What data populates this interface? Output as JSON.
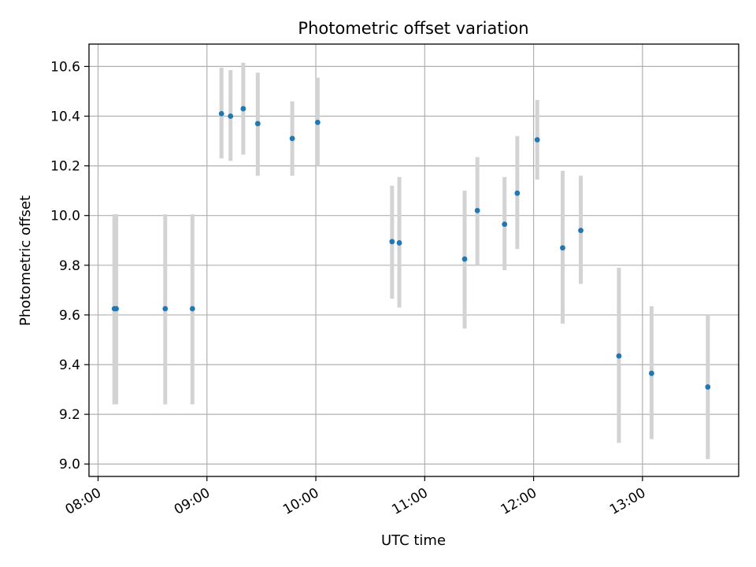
{
  "chart_data": {
    "type": "scatter",
    "title": "Photometric offset variation",
    "xlabel": "UTC time",
    "ylabel": "Photometric offset",
    "x_ticks": [
      "08:00",
      "09:00",
      "10:00",
      "11:00",
      "12:00",
      "13:00"
    ],
    "y_ticks": [
      "9.0",
      "9.2",
      "9.4",
      "9.6",
      "9.8",
      "10.0",
      "10.2",
      "10.4",
      "10.6"
    ],
    "xlim": [
      "07:55",
      "13:53"
    ],
    "ylim": [
      8.95,
      10.69
    ],
    "grid": true,
    "colors": {
      "points": "#1f77b4",
      "errorbars": "#d3d3d3"
    },
    "series": [
      {
        "x": [
          "08:09",
          "08:10",
          "08:37",
          "08:52",
          "09:08",
          "09:13",
          "09:20",
          "09:28",
          "09:47",
          "10:01",
          "10:42",
          "10:46",
          "11:22",
          "11:29",
          "11:44",
          "11:51",
          "12:02",
          "12:16",
          "12:26",
          "12:47",
          "13:05",
          "13:36"
        ],
        "y": [
          9.625,
          9.625,
          9.625,
          9.625,
          10.41,
          10.4,
          10.43,
          10.37,
          10.31,
          10.375,
          9.895,
          9.89,
          9.825,
          10.02,
          9.965,
          10.09,
          10.305,
          9.87,
          9.94,
          9.435,
          9.365,
          9.31
        ],
        "yerr_low": [
          9.24,
          9.24,
          9.24,
          9.24,
          10.23,
          10.22,
          10.245,
          10.16,
          10.16,
          10.2,
          9.665,
          9.63,
          9.545,
          9.8,
          9.78,
          9.865,
          10.145,
          9.565,
          9.725,
          9.085,
          9.1,
          9.02
        ],
        "yerr_high": [
          10.005,
          10.005,
          10.005,
          10.005,
          10.595,
          10.585,
          10.615,
          10.575,
          10.46,
          10.555,
          10.12,
          10.155,
          10.1,
          10.235,
          10.155,
          10.32,
          10.465,
          10.18,
          10.16,
          9.79,
          9.635,
          9.6
        ]
      }
    ]
  }
}
